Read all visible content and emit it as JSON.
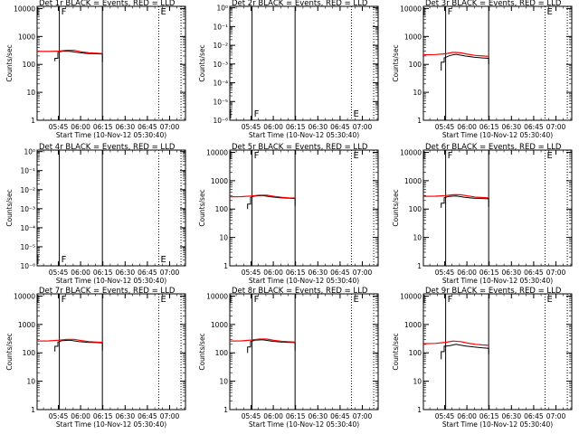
{
  "chart_data": [
    {
      "type": "line",
      "title": "Det 1r BLACK = Events, RED = LLD",
      "xlabel": "Start Time (10-Nov-12 05:30:40)",
      "ylabel": "Counts/sec",
      "xticks": [
        "05:45",
        "06:00",
        "06:15",
        "06:30",
        "06:45",
        "07:00"
      ],
      "yscale": "log",
      "yticks": [
        "1",
        "10",
        "100",
        "1000",
        "10000"
      ],
      "ylim": [
        1,
        12000
      ],
      "xlim_minutes": [
        0,
        100
      ],
      "solid_lines_min": [
        15,
        44
      ],
      "dotted_lines_min": [
        82,
        97
      ],
      "flags": [
        {
          "label": "F",
          "x": 15,
          "pos": "top"
        },
        {
          "label": "E",
          "x": 82,
          "pos": "top"
        }
      ],
      "series": [
        {
          "color": "#000000",
          "x": [
            12,
            12,
            14,
            14,
            17,
            22,
            28,
            34,
            40,
            44,
            44
          ],
          "y": [
            130,
            165,
            165,
            270,
            300,
            295,
            265,
            245,
            240,
            235,
            120
          ]
        },
        {
          "color": "#ff0000",
          "x": [
            0,
            8,
            15,
            20,
            25,
            30,
            35,
            40,
            44
          ],
          "y": [
            290,
            290,
            300,
            320,
            320,
            280,
            260,
            250,
            245
          ]
        }
      ]
    },
    {
      "type": "line",
      "title": "Det 2r BLACK = Events, RED = LLD",
      "xlabel": "Start Time (10-Nov-12 05:30:40)",
      "ylabel": "Counts/sec",
      "xticks": [
        "05:45",
        "06:00",
        "06:15",
        "06:30",
        "06:45",
        "07:00"
      ],
      "yscale": "log",
      "yticks": [
        "10⁰",
        "10⁻¹",
        "10⁻²",
        "10⁻³",
        "10⁻⁴",
        "10⁻⁵",
        "10⁻⁶"
      ],
      "ylim": [
        1e-06,
        1.2
      ],
      "xlim_minutes": [
        0,
        100
      ],
      "solid_lines_min": [
        15,
        44
      ],
      "dotted_lines_min": [
        82,
        97
      ],
      "flags": [
        {
          "label": "F",
          "x": 15,
          "pos": "bottom"
        },
        {
          "label": "E",
          "x": 82,
          "pos": "bottom"
        }
      ],
      "series": []
    },
    {
      "type": "line",
      "title": "Det 3r BLACK = Events, RED = LLD",
      "xlabel": "Start Time (10-Nov-12 05:30:40)",
      "ylabel": "Counts/sec",
      "xticks": [
        "05:45",
        "06:00",
        "06:15",
        "06:30",
        "06:45",
        "07:00"
      ],
      "yscale": "log",
      "yticks": [
        "1",
        "10",
        "100",
        "1000",
        "10000"
      ],
      "ylim": [
        1,
        12000
      ],
      "xlim_minutes": [
        0,
        100
      ],
      "solid_lines_min": [
        15,
        44
      ],
      "dotted_lines_min": [
        82,
        97
      ],
      "flags": [
        {
          "label": "F",
          "x": 15,
          "pos": "top"
        },
        {
          "label": "E",
          "x": 82,
          "pos": "top"
        }
      ],
      "series": [
        {
          "color": "#000000",
          "x": [
            12,
            12,
            14,
            14,
            18,
            22,
            28,
            34,
            40,
            44,
            44
          ],
          "y": [
            60,
            120,
            120,
            170,
            210,
            230,
            200,
            180,
            170,
            165,
            100
          ]
        },
        {
          "color": "#ff0000",
          "x": [
            0,
            8,
            15,
            20,
            25,
            30,
            35,
            40,
            44
          ],
          "y": [
            220,
            225,
            240,
            270,
            260,
            230,
            210,
            200,
            195
          ]
        }
      ]
    },
    {
      "type": "line",
      "title": "Det 4r BLACK = Events, RED = LLD",
      "xlabel": "Start Time (10-Nov-12 05:30:40)",
      "ylabel": "Counts/sec",
      "xticks": [
        "05:45",
        "06:00",
        "06:15",
        "06:30",
        "06:45",
        "07:00"
      ],
      "yscale": "log",
      "yticks": [
        "10⁰",
        "10⁻¹",
        "10⁻²",
        "10⁻³",
        "10⁻⁴",
        "10⁻⁵",
        "10⁻⁶"
      ],
      "ylim": [
        1e-06,
        1.2
      ],
      "xlim_minutes": [
        0,
        100
      ],
      "solid_lines_min": [
        15,
        44
      ],
      "dotted_lines_min": [
        82,
        97
      ],
      "flags": [
        {
          "label": "F",
          "x": 15,
          "pos": "bottom"
        },
        {
          "label": "E",
          "x": 82,
          "pos": "bottom"
        }
      ],
      "series": []
    },
    {
      "type": "line",
      "title": "Det 5r BLACK = Events, RED = LLD",
      "xlabel": "Start Time (10-Nov-12 05:30:40)",
      "ylabel": "Counts/sec",
      "xticks": [
        "05:45",
        "06:00",
        "06:15",
        "06:30",
        "06:45",
        "07:00"
      ],
      "yscale": "log",
      "yticks": [
        "1",
        "10",
        "100",
        "1000",
        "10000"
      ],
      "ylim": [
        1,
        12000
      ],
      "xlim_minutes": [
        0,
        100
      ],
      "solid_lines_min": [
        15,
        44
      ],
      "dotted_lines_min": [
        82,
        97
      ],
      "flags": [
        {
          "label": "F",
          "x": 15,
          "pos": "top"
        },
        {
          "label": "E",
          "x": 82,
          "pos": "top"
        }
      ],
      "series": [
        {
          "color": "#000000",
          "x": [
            12,
            12,
            14,
            14,
            17,
            22,
            28,
            34,
            40,
            44,
            44
          ],
          "y": [
            100,
            150,
            150,
            260,
            290,
            300,
            270,
            250,
            240,
            235,
            130
          ]
        },
        {
          "color": "#ff0000",
          "x": [
            0,
            8,
            15,
            20,
            25,
            30,
            35,
            40,
            44
          ],
          "y": [
            270,
            275,
            290,
            310,
            310,
            280,
            260,
            250,
            245
          ]
        }
      ]
    },
    {
      "type": "line",
      "title": "Det 6r BLACK = Events, RED = LLD",
      "xlabel": "Start Time (10-Nov-12 05:30:40)",
      "ylabel": "Counts/sec",
      "xticks": [
        "05:45",
        "06:00",
        "06:15",
        "06:30",
        "06:45",
        "07:00"
      ],
      "yscale": "log",
      "yticks": [
        "1",
        "10",
        "100",
        "1000",
        "10000"
      ],
      "ylim": [
        1,
        12000
      ],
      "xlim_minutes": [
        0,
        100
      ],
      "solid_lines_min": [
        15,
        44
      ],
      "dotted_lines_min": [
        82,
        97
      ],
      "flags": [
        {
          "label": "F",
          "x": 15,
          "pos": "top"
        },
        {
          "label": "E",
          "x": 82,
          "pos": "top"
        }
      ],
      "series": [
        {
          "color": "#000000",
          "x": [
            12,
            12,
            14,
            14,
            17,
            22,
            28,
            34,
            40,
            44,
            44
          ],
          "y": [
            110,
            160,
            160,
            250,
            280,
            290,
            260,
            240,
            235,
            230,
            120
          ]
        },
        {
          "color": "#ff0000",
          "x": [
            0,
            8,
            15,
            20,
            25,
            30,
            35,
            40,
            44
          ],
          "y": [
            280,
            285,
            300,
            320,
            320,
            290,
            265,
            255,
            250
          ]
        }
      ]
    },
    {
      "type": "line",
      "title": "Det 7r BLACK = Events, RED = LLD",
      "xlabel": "Start Time (10-Nov-12 05:30:40)",
      "ylabel": "Counts/sec",
      "xticks": [
        "05:45",
        "06:00",
        "06:15",
        "06:30",
        "06:45",
        "07:00"
      ],
      "yscale": "log",
      "yticks": [
        "1",
        "10",
        "100",
        "1000",
        "10000"
      ],
      "ylim": [
        1,
        12000
      ],
      "xlim_minutes": [
        0,
        100
      ],
      "solid_lines_min": [
        15,
        44
      ],
      "dotted_lines_min": [
        82,
        97
      ],
      "flags": [
        {
          "label": "F",
          "x": 15,
          "pos": "top"
        },
        {
          "label": "E",
          "x": 82,
          "pos": "top"
        }
      ],
      "series": [
        {
          "color": "#000000",
          "x": [
            12,
            12,
            14,
            14,
            17,
            22,
            28,
            34,
            40,
            44,
            44
          ],
          "y": [
            110,
            170,
            170,
            240,
            270,
            280,
            250,
            235,
            230,
            225,
            120
          ]
        },
        {
          "color": "#ff0000",
          "x": [
            0,
            8,
            15,
            20,
            25,
            30,
            35,
            40,
            44
          ],
          "y": [
            260,
            265,
            280,
            300,
            300,
            270,
            250,
            240,
            235
          ]
        }
      ]
    },
    {
      "type": "line",
      "title": "Det 8r BLACK = Events, RED = LLD",
      "xlabel": "Start Time (10-Nov-12 05:30:40)",
      "ylabel": "Counts/sec",
      "xticks": [
        "05:45",
        "06:00",
        "06:15",
        "06:30",
        "06:45",
        "07:00"
      ],
      "yscale": "log",
      "yticks": [
        "1",
        "10",
        "100",
        "1000",
        "10000"
      ],
      "ylim": [
        1,
        12000
      ],
      "xlim_minutes": [
        0,
        100
      ],
      "solid_lines_min": [
        15,
        44
      ],
      "dotted_lines_min": [
        82,
        97
      ],
      "flags": [
        {
          "label": "F",
          "x": 15,
          "pos": "top"
        },
        {
          "label": "E",
          "x": 82,
          "pos": "top"
        }
      ],
      "series": [
        {
          "color": "#000000",
          "x": [
            12,
            12,
            14,
            14,
            17,
            22,
            28,
            34,
            40,
            44,
            44
          ],
          "y": [
            100,
            160,
            160,
            250,
            280,
            290,
            260,
            240,
            235,
            230,
            120
          ]
        },
        {
          "color": "#ff0000",
          "x": [
            0,
            8,
            15,
            20,
            25,
            30,
            35,
            40,
            44
          ],
          "y": [
            260,
            265,
            285,
            305,
            305,
            275,
            255,
            245,
            240
          ]
        }
      ]
    },
    {
      "type": "line",
      "title": "Det 9r BLACK = Events, RED = LLD",
      "xlabel": "Start Time (10-Nov-12 05:30:40)",
      "ylabel": "Counts/sec",
      "xticks": [
        "05:45",
        "06:00",
        "06:15",
        "06:30",
        "06:45",
        "07:00"
      ],
      "yscale": "log",
      "yticks": [
        "1",
        "10",
        "100",
        "1000",
        "10000"
      ],
      "ylim": [
        1,
        12000
      ],
      "xlim_minutes": [
        0,
        100
      ],
      "solid_lines_min": [
        15,
        44
      ],
      "dotted_lines_min": [
        82,
        97
      ],
      "flags": [
        {
          "label": "F",
          "x": 15,
          "pos": "top"
        },
        {
          "label": "E",
          "x": 82,
          "pos": "top"
        }
      ],
      "series": [
        {
          "color": "#000000",
          "x": [
            12,
            12,
            14,
            14,
            18,
            22,
            28,
            34,
            40,
            44,
            44
          ],
          "y": [
            60,
            110,
            110,
            170,
            180,
            200,
            175,
            160,
            150,
            145,
            90
          ]
        },
        {
          "color": "#ff0000",
          "x": [
            0,
            8,
            15,
            20,
            25,
            30,
            35,
            40,
            44
          ],
          "y": [
            210,
            215,
            235,
            260,
            250,
            220,
            200,
            190,
            185
          ]
        }
      ]
    }
  ]
}
